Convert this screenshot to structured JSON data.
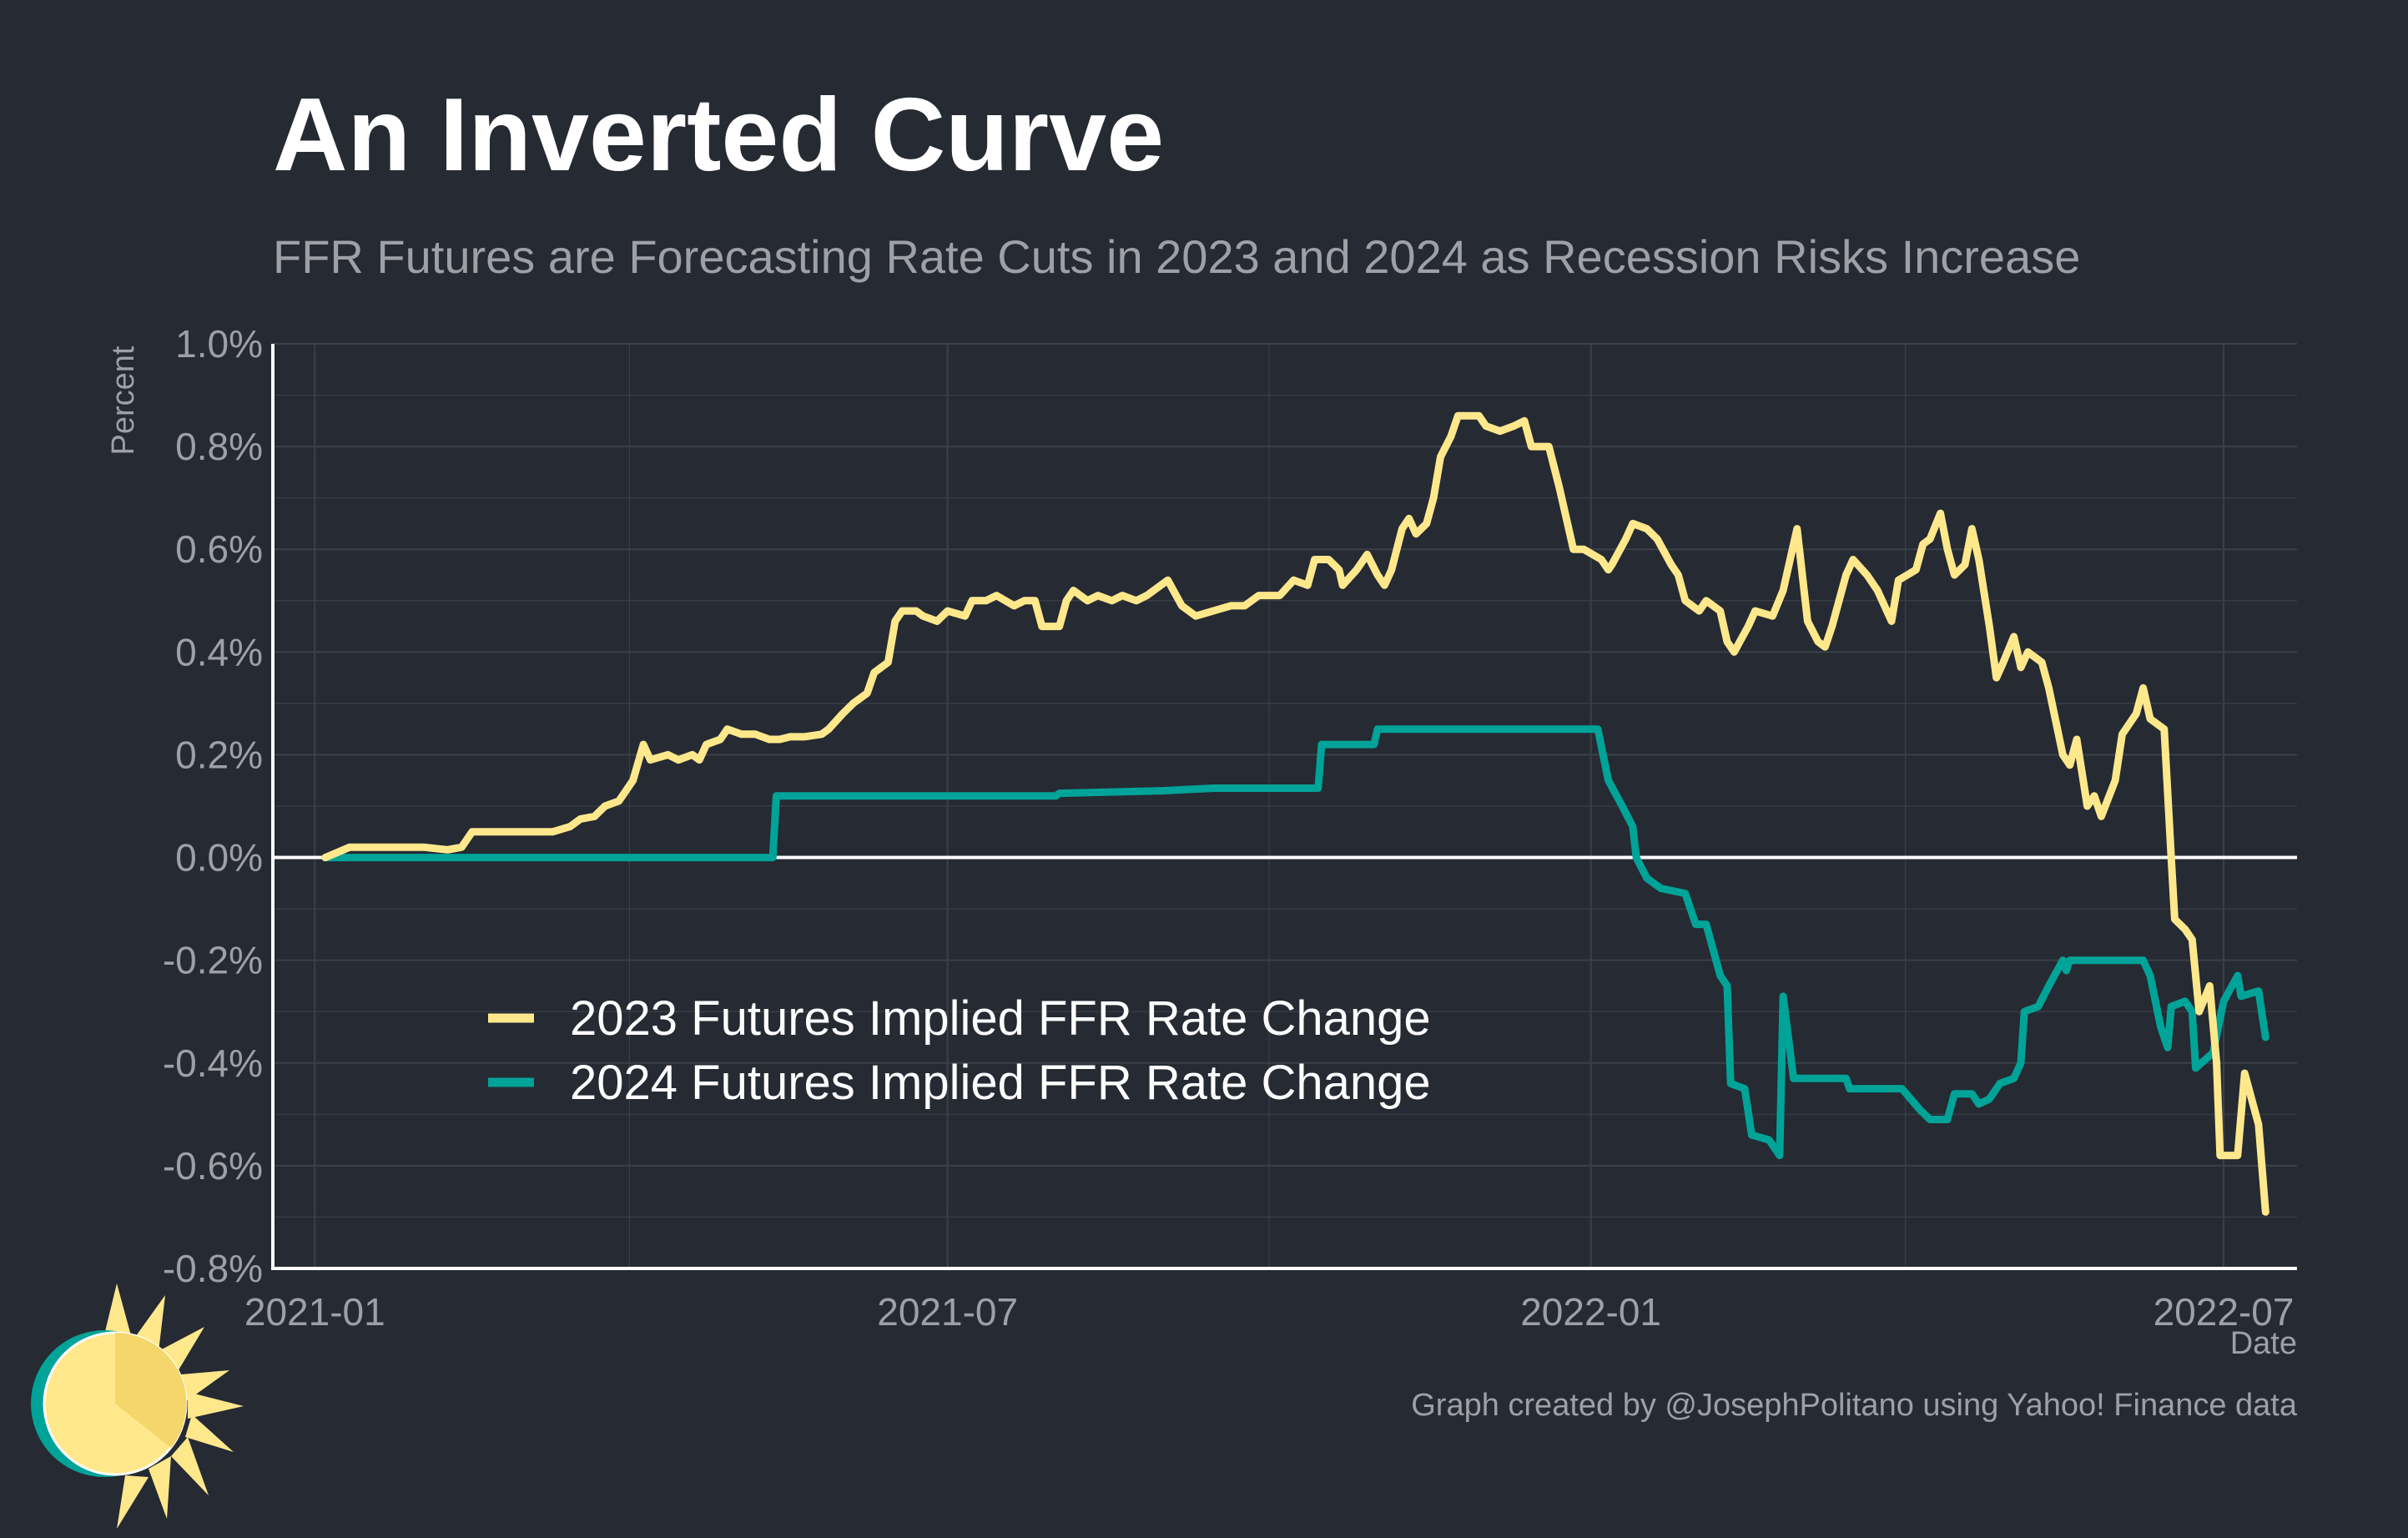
{
  "colors": {
    "background": "#252a33",
    "grid": "#3b4049",
    "axis": "#ffffff",
    "series_2023": "#ffe88c",
    "series_2024": "#00a398",
    "text_muted": "#9ea0a5"
  },
  "caption": "Graph created by @JosephPolitano using Yahoo! Finance data",
  "logo_icon": "sun-logo-icon",
  "chart_data": {
    "type": "line",
    "title": "An Inverted Curve",
    "subtitle": "FFR Futures are Forecasting Rate Cuts in 2023 and 2024 as Recession Risks Increase",
    "xlabel": "Date",
    "ylabel": "Percent",
    "ylim": [
      -0.8,
      1.0
    ],
    "xlim": [
      "2020-12-20",
      "2022-07-22"
    ],
    "grid": true,
    "legend_position": "lower-left",
    "y_ticks": [
      -0.8,
      -0.6,
      -0.4,
      -0.2,
      0.0,
      0.2,
      0.4,
      0.6,
      0.8,
      1.0
    ],
    "y_tick_labels": [
      "-0.8%",
      "-0.6%",
      "-0.4%",
      "-0.2%",
      "0.0%",
      "0.2%",
      "0.4%",
      "0.6%",
      "0.8%",
      "1.0%"
    ],
    "x_ticks": [
      "2021-01-01",
      "2021-07-01",
      "2022-01-01",
      "2022-07-01"
    ],
    "x_tick_labels": [
      "2021-01",
      "2021-07",
      "2022-01",
      "2022-07"
    ],
    "series": [
      {
        "name": "2023 Futures Implied FFR Rate Change",
        "color": "#ffe88c",
        "points": [
          [
            "2021-01-04",
            0.0
          ],
          [
            "2021-01-11",
            0.02
          ],
          [
            "2021-02-01",
            0.02
          ],
          [
            "2021-02-08",
            0.015
          ],
          [
            "2021-02-12",
            0.02
          ],
          [
            "2021-02-15",
            0.05
          ],
          [
            "2021-03-01",
            0.05
          ],
          [
            "2021-03-10",
            0.05
          ],
          [
            "2021-03-15",
            0.06
          ],
          [
            "2021-03-18",
            0.075
          ],
          [
            "2021-03-22",
            0.08
          ],
          [
            "2021-03-25",
            0.1
          ],
          [
            "2021-03-29",
            0.11
          ],
          [
            "2021-04-02",
            0.15
          ],
          [
            "2021-04-05",
            0.22
          ],
          [
            "2021-04-07",
            0.19
          ],
          [
            "2021-04-12",
            0.2
          ],
          [
            "2021-04-15",
            0.19
          ],
          [
            "2021-04-19",
            0.2
          ],
          [
            "2021-04-21",
            0.19
          ],
          [
            "2021-04-23",
            0.22
          ],
          [
            "2021-04-27",
            0.23
          ],
          [
            "2021-04-29",
            0.25
          ],
          [
            "2021-05-03",
            0.24
          ],
          [
            "2021-05-07",
            0.24
          ],
          [
            "2021-05-11",
            0.23
          ],
          [
            "2021-05-14",
            0.23
          ],
          [
            "2021-05-17",
            0.235
          ],
          [
            "2021-05-21",
            0.235
          ],
          [
            "2021-05-26",
            0.24
          ],
          [
            "2021-05-28",
            0.25
          ],
          [
            "2021-06-01",
            0.28
          ],
          [
            "2021-06-04",
            0.3
          ],
          [
            "2021-06-08",
            0.32
          ],
          [
            "2021-06-10",
            0.36
          ],
          [
            "2021-06-14",
            0.38
          ],
          [
            "2021-06-16",
            0.46
          ],
          [
            "2021-06-18",
            0.48
          ],
          [
            "2021-06-22",
            0.48
          ],
          [
            "2021-06-24",
            0.47
          ],
          [
            "2021-06-28",
            0.46
          ],
          [
            "2021-07-01",
            0.48
          ],
          [
            "2021-07-06",
            0.47
          ],
          [
            "2021-07-08",
            0.5
          ],
          [
            "2021-07-12",
            0.5
          ],
          [
            "2021-07-15",
            0.51
          ],
          [
            "2021-07-20",
            0.49
          ],
          [
            "2021-07-23",
            0.5
          ],
          [
            "2021-07-26",
            0.5
          ],
          [
            "2021-07-28",
            0.45
          ],
          [
            "2021-08-02",
            0.45
          ],
          [
            "2021-08-04",
            0.5
          ],
          [
            "2021-08-06",
            0.52
          ],
          [
            "2021-08-10",
            0.5
          ],
          [
            "2021-08-13",
            0.51
          ],
          [
            "2021-08-17",
            0.5
          ],
          [
            "2021-08-20",
            0.51
          ],
          [
            "2021-08-24",
            0.5
          ],
          [
            "2021-08-27",
            0.51
          ],
          [
            "2021-08-31",
            0.53
          ],
          [
            "2021-09-02",
            0.54
          ],
          [
            "2021-09-06",
            0.49
          ],
          [
            "2021-09-10",
            0.47
          ],
          [
            "2021-09-15",
            0.48
          ],
          [
            "2021-09-20",
            0.49
          ],
          [
            "2021-09-24",
            0.49
          ],
          [
            "2021-09-28",
            0.51
          ],
          [
            "2021-10-04",
            0.51
          ],
          [
            "2021-10-08",
            0.54
          ],
          [
            "2021-10-12",
            0.53
          ],
          [
            "2021-10-14",
            0.58
          ],
          [
            "2021-10-18",
            0.58
          ],
          [
            "2021-10-21",
            0.56
          ],
          [
            "2021-10-22",
            0.53
          ],
          [
            "2021-10-26",
            0.56
          ],
          [
            "2021-10-29",
            0.59
          ],
          [
            "2021-11-01",
            0.55
          ],
          [
            "2021-11-03",
            0.53
          ],
          [
            "2021-11-05",
            0.56
          ],
          [
            "2021-11-08",
            0.64
          ],
          [
            "2021-11-10",
            0.66
          ],
          [
            "2021-11-12",
            0.63
          ],
          [
            "2021-11-15",
            0.65
          ],
          [
            "2021-11-17",
            0.7
          ],
          [
            "2021-11-19",
            0.78
          ],
          [
            "2021-11-22",
            0.82
          ],
          [
            "2021-11-24",
            0.86
          ],
          [
            "2021-11-30",
            0.86
          ],
          [
            "2021-12-02",
            0.84
          ],
          [
            "2021-12-06",
            0.83
          ],
          [
            "2021-12-10",
            0.84
          ],
          [
            "2021-12-13",
            0.85
          ],
          [
            "2021-12-15",
            0.8
          ],
          [
            "2021-12-20",
            0.8
          ],
          [
            "2021-12-23",
            0.72
          ],
          [
            "2021-12-27",
            0.6
          ],
          [
            "2021-12-30",
            0.6
          ],
          [
            "2022-01-04",
            0.58
          ],
          [
            "2022-01-06",
            0.56
          ],
          [
            "2022-01-07",
            0.57
          ],
          [
            "2022-01-11",
            0.62
          ],
          [
            "2022-01-13",
            0.65
          ],
          [
            "2022-01-17",
            0.64
          ],
          [
            "2022-01-20",
            0.62
          ],
          [
            "2022-01-24",
            0.57
          ],
          [
            "2022-01-26",
            0.55
          ],
          [
            "2022-01-28",
            0.5
          ],
          [
            "2022-02-01",
            0.48
          ],
          [
            "2022-02-03",
            0.5
          ],
          [
            "2022-02-07",
            0.48
          ],
          [
            "2022-02-09",
            0.42
          ],
          [
            "2022-02-11",
            0.4
          ],
          [
            "2022-02-15",
            0.45
          ],
          [
            "2022-02-17",
            0.48
          ],
          [
            "2022-02-22",
            0.47
          ],
          [
            "2022-02-25",
            0.52
          ],
          [
            "2022-03-01",
            0.64
          ],
          [
            "2022-03-04",
            0.46
          ],
          [
            "2022-03-07",
            0.42
          ],
          [
            "2022-03-09",
            0.41
          ],
          [
            "2022-03-11",
            0.45
          ],
          [
            "2022-03-15",
            0.55
          ],
          [
            "2022-03-17",
            0.58
          ],
          [
            "2022-03-21",
            0.55
          ],
          [
            "2022-03-24",
            0.52
          ],
          [
            "2022-03-28",
            0.46
          ],
          [
            "2022-03-30",
            0.54
          ],
          [
            "2022-04-04",
            0.56
          ],
          [
            "2022-04-06",
            0.61
          ],
          [
            "2022-04-08",
            0.62
          ],
          [
            "2022-04-11",
            0.67
          ],
          [
            "2022-04-13",
            0.6
          ],
          [
            "2022-04-15",
            0.55
          ],
          [
            "2022-04-18",
            0.57
          ],
          [
            "2022-04-20",
            0.64
          ],
          [
            "2022-04-22",
            0.58
          ],
          [
            "2022-04-25",
            0.45
          ],
          [
            "2022-04-27",
            0.35
          ],
          [
            "2022-04-29",
            0.38
          ],
          [
            "2022-05-02",
            0.43
          ],
          [
            "2022-05-04",
            0.37
          ],
          [
            "2022-05-06",
            0.4
          ],
          [
            "2022-05-10",
            0.38
          ],
          [
            "2022-05-12",
            0.33
          ],
          [
            "2022-05-16",
            0.2
          ],
          [
            "2022-05-18",
            0.18
          ],
          [
            "2022-05-20",
            0.23
          ],
          [
            "2022-05-23",
            0.1
          ],
          [
            "2022-05-25",
            0.12
          ],
          [
            "2022-05-27",
            0.08
          ],
          [
            "2022-05-31",
            0.15
          ],
          [
            "2022-06-02",
            0.24
          ],
          [
            "2022-06-06",
            0.28
          ],
          [
            "2022-06-08",
            0.33
          ],
          [
            "2022-06-10",
            0.27
          ],
          [
            "2022-06-14",
            0.25
          ],
          [
            "2022-06-16",
            0.0
          ],
          [
            "2022-06-17",
            -0.12
          ],
          [
            "2022-06-20",
            -0.14
          ],
          [
            "2022-06-22",
            -0.16
          ],
          [
            "2022-06-24",
            -0.3
          ],
          [
            "2022-06-27",
            -0.25
          ],
          [
            "2022-06-29",
            -0.4
          ],
          [
            "2022-06-30",
            -0.58
          ],
          [
            "2022-07-05",
            -0.58
          ],
          [
            "2022-07-07",
            -0.42
          ],
          [
            "2022-07-11",
            -0.52
          ],
          [
            "2022-07-13",
            -0.69
          ]
        ]
      },
      {
        "name": "2024 Futures Implied FFR Rate Change",
        "color": "#00a398",
        "points": [
          [
            "2021-01-04",
            0.0
          ],
          [
            "2021-05-12",
            0.0
          ],
          [
            "2021-05-13",
            0.12
          ],
          [
            "2021-08-01",
            0.12
          ],
          [
            "2021-08-02",
            0.125
          ],
          [
            "2021-09-01",
            0.13
          ],
          [
            "2021-09-15",
            0.135
          ],
          [
            "2021-10-15",
            0.135
          ],
          [
            "2021-10-16",
            0.22
          ],
          [
            "2021-10-31",
            0.22
          ],
          [
            "2021-11-01",
            0.25
          ],
          [
            "2022-01-03",
            0.25
          ],
          [
            "2022-01-06",
            0.15
          ],
          [
            "2022-01-10",
            0.1
          ],
          [
            "2022-01-13",
            0.06
          ],
          [
            "2022-01-14",
            0.0
          ],
          [
            "2022-01-17",
            -0.04
          ],
          [
            "2022-01-21",
            -0.06
          ],
          [
            "2022-01-28",
            -0.07
          ],
          [
            "2022-01-31",
            -0.13
          ],
          [
            "2022-02-03",
            -0.13
          ],
          [
            "2022-02-07",
            -0.23
          ],
          [
            "2022-02-09",
            -0.25
          ],
          [
            "2022-02-10",
            -0.44
          ],
          [
            "2022-02-14",
            -0.45
          ],
          [
            "2022-02-16",
            -0.54
          ],
          [
            "2022-02-21",
            -0.55
          ],
          [
            "2022-02-24",
            -0.58
          ],
          [
            "2022-02-25",
            -0.27
          ],
          [
            "2022-02-28",
            -0.43
          ],
          [
            "2022-03-15",
            -0.43
          ],
          [
            "2022-03-16",
            -0.45
          ],
          [
            "2022-03-31",
            -0.45
          ],
          [
            "2022-04-05",
            -0.49
          ],
          [
            "2022-04-08",
            -0.51
          ],
          [
            "2022-04-13",
            -0.51
          ],
          [
            "2022-04-15",
            -0.46
          ],
          [
            "2022-04-20",
            -0.46
          ],
          [
            "2022-04-22",
            -0.48
          ],
          [
            "2022-04-25",
            -0.47
          ],
          [
            "2022-04-28",
            -0.44
          ],
          [
            "2022-05-02",
            -0.43
          ],
          [
            "2022-05-04",
            -0.4
          ],
          [
            "2022-05-05",
            -0.3
          ],
          [
            "2022-05-09",
            -0.29
          ],
          [
            "2022-05-12",
            -0.25
          ],
          [
            "2022-05-16",
            -0.2
          ],
          [
            "2022-05-17",
            -0.22
          ],
          [
            "2022-05-18",
            -0.2
          ],
          [
            "2022-06-08",
            -0.2
          ],
          [
            "2022-06-10",
            -0.23
          ],
          [
            "2022-06-13",
            -0.33
          ],
          [
            "2022-06-15",
            -0.37
          ],
          [
            "2022-06-16",
            -0.29
          ],
          [
            "2022-06-20",
            -0.28
          ],
          [
            "2022-06-22",
            -0.3
          ],
          [
            "2022-06-23",
            -0.41
          ],
          [
            "2022-06-28",
            -0.38
          ],
          [
            "2022-07-01",
            -0.28
          ],
          [
            "2022-07-05",
            -0.23
          ],
          [
            "2022-07-06",
            -0.27
          ],
          [
            "2022-07-11",
            -0.26
          ],
          [
            "2022-07-13",
            -0.35
          ]
        ]
      }
    ]
  }
}
